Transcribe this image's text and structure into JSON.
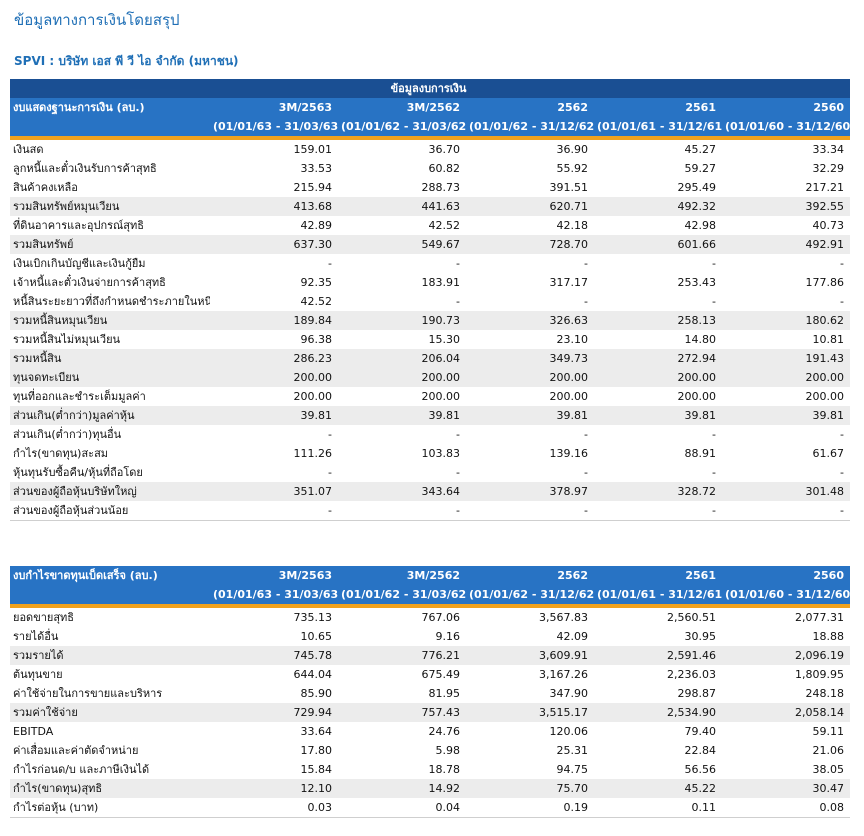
{
  "page_title": "ข้อมูลทางการเงินโดยสรุป",
  "company": "SPVI : บริษัท เอส พี วี ไอ จำกัด (มหาชน)",
  "balance": {
    "banner": "ข้อมูลงบการเงิน",
    "header": "งบแสดงฐานะการเงิน (ลบ.)",
    "periods": [
      "3M/2563",
      "3M/2562",
      "2562",
      "2561",
      "2560"
    ],
    "ranges": [
      "(01/01/63 - 31/03/63)",
      "(01/01/62 - 31/03/62)",
      "(01/01/62 - 31/12/62)",
      "(01/01/61 - 31/12/61)",
      "(01/01/60 - 31/12/60)"
    ],
    "rows": [
      {
        "label": "เงินสด",
        "v": [
          "159.01",
          "36.70",
          "36.90",
          "45.27",
          "33.34"
        ]
      },
      {
        "label": "ลูกหนี้และตั๋วเงินรับการค้าสุทธิ",
        "v": [
          "33.53",
          "60.82",
          "55.92",
          "59.27",
          "32.29"
        ]
      },
      {
        "label": "สินค้าคงเหลือ",
        "v": [
          "215.94",
          "288.73",
          "391.51",
          "295.49",
          "217.21"
        ]
      },
      {
        "label": "รวมสินทรัพย์หมุนเวียน",
        "v": [
          "413.68",
          "441.63",
          "620.71",
          "492.32",
          "392.55"
        ]
      },
      {
        "label": "ที่ดินอาคารและอุปกรณ์สุทธิ",
        "v": [
          "42.89",
          "42.52",
          "42.18",
          "42.98",
          "40.73"
        ]
      },
      {
        "label": "รวมสินทรัพย์",
        "v": [
          "637.30",
          "549.67",
          "728.70",
          "601.66",
          "492.91"
        ]
      },
      {
        "label": "เงินเบิกเกินบัญชีและเงินกู้ยืม",
        "v": [
          "-",
          "-",
          "-",
          "-",
          "-"
        ]
      },
      {
        "label": "เจ้าหนี้และตั๋วเงินจ่ายการค้าสุทธิ",
        "v": [
          "92.35",
          "183.91",
          "317.17",
          "253.43",
          "177.86"
        ]
      },
      {
        "label": "หนี้สินระยะยาวที่ถึงกำหนดชำระภายในหนึ่งปี",
        "v": [
          "42.52",
          "-",
          "-",
          "-",
          "-"
        ]
      },
      {
        "label": "รวมหนี้สินหมุนเวียน",
        "v": [
          "189.84",
          "190.73",
          "326.63",
          "258.13",
          "180.62"
        ]
      },
      {
        "label": "รวมหนี้สินไม่หมุนเวียน",
        "v": [
          "96.38",
          "15.30",
          "23.10",
          "14.80",
          "10.81"
        ]
      },
      {
        "label": "รวมหนี้สิน",
        "v": [
          "286.23",
          "206.04",
          "349.73",
          "272.94",
          "191.43"
        ]
      },
      {
        "label": "ทุนจดทะเบียน",
        "v": [
          "200.00",
          "200.00",
          "200.00",
          "200.00",
          "200.00"
        ]
      },
      {
        "label": "ทุนที่ออกและชำระเต็มมูลค่า",
        "v": [
          "200.00",
          "200.00",
          "200.00",
          "200.00",
          "200.00"
        ]
      },
      {
        "label": "ส่วนเกิน(ต่ำกว่า)มูลค่าหุ้น",
        "v": [
          "39.81",
          "39.81",
          "39.81",
          "39.81",
          "39.81"
        ]
      },
      {
        "label": "ส่วนเกิน(ต่ำกว่า)ทุนอื่น",
        "v": [
          "-",
          "-",
          "-",
          "-",
          "-"
        ]
      },
      {
        "label": "กำไร(ขาดทุน)สะสม",
        "v": [
          "111.26",
          "103.83",
          "139.16",
          "88.91",
          "61.67"
        ]
      },
      {
        "label": "หุ้นทุนรับซื้อคืน/หุ้นที่ถือโดย",
        "v": [
          "-",
          "-",
          "-",
          "-",
          "-"
        ]
      },
      {
        "label": "ส่วนของผู้ถือหุ้นบริษัทใหญ่",
        "v": [
          "351.07",
          "343.64",
          "378.97",
          "328.72",
          "301.48"
        ]
      },
      {
        "label": "ส่วนของผู้ถือหุ้นส่วนน้อย",
        "v": [
          "-",
          "-",
          "-",
          "-",
          "-"
        ]
      }
    ]
  },
  "income": {
    "header": "งบกำไรขาดทุนเบ็ดเสร็จ (ลบ.)",
    "periods": [
      "3M/2563",
      "3M/2562",
      "2562",
      "2561",
      "2560"
    ],
    "ranges": [
      "(01/01/63 - 31/03/63)",
      "(01/01/62 - 31/03/62)",
      "(01/01/62 - 31/12/62)",
      "(01/01/61 - 31/12/61)",
      "(01/01/60 - 31/12/60)"
    ],
    "rows": [
      {
        "label": "ยอดขายสุทธิ",
        "v": [
          "735.13",
          "767.06",
          "3,567.83",
          "2,560.51",
          "2,077.31"
        ]
      },
      {
        "label": "รายได้อื่น",
        "v": [
          "10.65",
          "9.16",
          "42.09",
          "30.95",
          "18.88"
        ]
      },
      {
        "label": "รวมรายได้",
        "v": [
          "745.78",
          "776.21",
          "3,609.91",
          "2,591.46",
          "2,096.19"
        ]
      },
      {
        "label": "ต้นทุนขาย",
        "v": [
          "644.04",
          "675.49",
          "3,167.26",
          "2,236.03",
          "1,809.95"
        ]
      },
      {
        "label": "ค่าใช้จ่ายในการขายและบริหาร",
        "v": [
          "85.90",
          "81.95",
          "347.90",
          "298.87",
          "248.18"
        ]
      },
      {
        "label": "รวมค่าใช้จ่าย",
        "v": [
          "729.94",
          "757.43",
          "3,515.17",
          "2,534.90",
          "2,058.14"
        ]
      },
      {
        "label": "EBITDA",
        "v": [
          "33.64",
          "24.76",
          "120.06",
          "79.40",
          "59.11"
        ]
      },
      {
        "label": "ค่าเสื่อมและค่าตัดจำหน่าย",
        "v": [
          "17.80",
          "5.98",
          "25.31",
          "22.84",
          "21.06"
        ]
      },
      {
        "label": "กำไรก่อนด/บ และภาษีเงินได้",
        "v": [
          "15.84",
          "18.78",
          "94.75",
          "56.56",
          "38.05"
        ]
      },
      {
        "label": "กำไร(ขาดทุน)สุทธิ",
        "v": [
          "12.10",
          "14.92",
          "75.70",
          "45.22",
          "30.47"
        ]
      },
      {
        "label": "กำไรต่อหุ้น (บาท)",
        "v": [
          "0.03",
          "0.04",
          "0.19",
          "0.11",
          "0.08"
        ]
      }
    ]
  }
}
